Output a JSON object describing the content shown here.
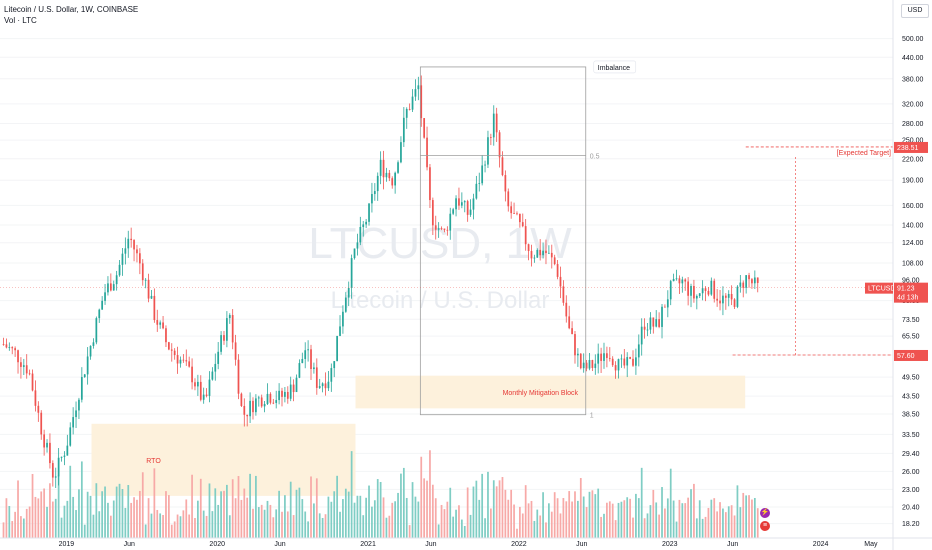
{
  "header": {
    "title": "Litecoin / U.S. Dollar, 1W, COINBASE",
    "indicator": "Vol · LTC",
    "currency_button": "USD"
  },
  "watermark": {
    "ticker": "LTCUSD, 1W",
    "name": "Litecoin / U.S. Dollar"
  },
  "colors": {
    "up": "#26a69a",
    "down": "#ef5350",
    "upVol": "#7fcdc4",
    "downVol": "#f7a9a7",
    "zone": "#fdf1dc",
    "rect": "#9e9e9e"
  },
  "annotations": {
    "imbalance": "Imbalance",
    "fib_half": "0.5",
    "fib_one": "1",
    "target": "[Expected Target]",
    "mitigation": "Monthly Mitigation Block",
    "rto": "RTO"
  },
  "price_tags": {
    "last_symbol": "LTCUSD",
    "last_price": "91.23",
    "countdown": "4d 13h",
    "target": "238.51",
    "low": "57.60"
  },
  "chart_data": {
    "type": "candlestick",
    "symbol": "LTCUSD",
    "timeframe": "1W",
    "y_scale": "log",
    "ylim": [
      16.5,
      560
    ],
    "y_ticks": [
      18.2,
      20.4,
      23.0,
      26.0,
      29.4,
      33.5,
      38.5,
      43.5,
      49.5,
      57.6,
      65.5,
      73.5,
      83.5,
      96.0,
      108.0,
      124.0,
      140.0,
      160.0,
      190.0,
      220.0,
      250.0,
      280.0,
      320.0,
      380.0,
      440.0,
      500.0
    ],
    "y_tick_labels": [
      "18.20",
      "20.40",
      "23.00",
      "26.00",
      "29.40",
      "33.50",
      "38.50",
      "43.50",
      "49.50",
      "57.60",
      "65.50",
      "73.50",
      "83.50",
      "96.00",
      "108.00",
      "124.00",
      "140.00",
      "160.00",
      "190.00",
      "220.00",
      "250.00",
      "280.00",
      "320.00",
      "380.00",
      "440.00",
      "500.00"
    ],
    "x_ticks": [
      "2019",
      "Jun",
      "2020",
      "Jun",
      "2021",
      "Jun",
      "2022",
      "Jun",
      "2023",
      "Jun",
      "2024",
      "May"
    ],
    "x_tick_dates": [
      "2019-01",
      "2019-06",
      "2020-01",
      "2020-06",
      "2021-01",
      "2021-06",
      "2022-01",
      "2022-06",
      "2023-01",
      "2023-06",
      "2024-01",
      "2024-05"
    ],
    "price_path": [
      [
        "2018-08",
        62
      ],
      [
        "2018-09",
        58
      ],
      [
        "2018-10",
        52
      ],
      [
        "2018-11",
        35
      ],
      [
        "2018-12",
        25
      ],
      [
        "2019-01",
        31
      ],
      [
        "2019-02",
        45
      ],
      [
        "2019-04",
        88
      ],
      [
        "2019-05",
        100
      ],
      [
        "2019-06",
        130
      ],
      [
        "2019-07",
        104
      ],
      [
        "2019-08",
        76
      ],
      [
        "2019-09",
        62
      ],
      [
        "2019-10",
        56
      ],
      [
        "2019-11",
        50
      ],
      [
        "2019-12",
        41
      ],
      [
        "2020-01",
        58
      ],
      [
        "2020-02",
        76
      ],
      [
        "2020-03",
        38
      ],
      [
        "2020-04",
        42
      ],
      [
        "2020-05",
        44
      ],
      [
        "2020-06",
        43
      ],
      [
        "2020-07",
        46
      ],
      [
        "2020-08",
        60
      ],
      [
        "2020-09",
        47
      ],
      [
        "2020-10",
        50
      ],
      [
        "2020-11",
        80
      ],
      [
        "2020-12",
        120
      ],
      [
        "2021-01",
        150
      ],
      [
        "2021-02",
        210
      ],
      [
        "2021-03",
        190
      ],
      [
        "2021-04",
        300
      ],
      [
        "2021-05",
        360
      ],
      [
        "2021-06",
        150
      ],
      [
        "2021-07",
        130
      ],
      [
        "2021-08",
        170
      ],
      [
        "2021-09",
        150
      ],
      [
        "2021-10",
        200
      ],
      [
        "2021-11",
        290
      ],
      [
        "2021-12",
        160
      ],
      [
        "2022-01",
        140
      ],
      [
        "2022-02",
        115
      ],
      [
        "2022-03",
        118
      ],
      [
        "2022-04",
        105
      ],
      [
        "2022-05",
        68
      ],
      [
        "2022-06",
        52
      ],
      [
        "2022-07",
        54
      ],
      [
        "2022-08",
        60
      ],
      [
        "2022-09",
        53
      ],
      [
        "2022-10",
        54
      ],
      [
        "2022-11",
        72
      ],
      [
        "2022-12",
        70
      ],
      [
        "2023-01",
        90
      ],
      [
        "2023-02",
        95
      ],
      [
        "2023-03",
        85
      ],
      [
        "2023-04",
        93
      ],
      [
        "2023-05",
        85
      ],
      [
        "2023-06",
        82
      ],
      [
        "2023-07",
        98
      ],
      [
        "2023-08",
        91
      ]
    ],
    "last_price": 91.23,
    "annotation_levels": {
      "imbalance_top": 412,
      "fib_half": 225,
      "fib_one": 38.3,
      "expected_target": 238.51,
      "range_low": 57.6
    },
    "zones": [
      {
        "label": "RTO",
        "from": "2019-03",
        "to": "2020-12",
        "low": 22,
        "high": 36
      },
      {
        "label": "Monthly Mitigation Block",
        "from": "2020-12",
        "to": "2023-07",
        "low": 40,
        "high": 50
      }
    ]
  }
}
